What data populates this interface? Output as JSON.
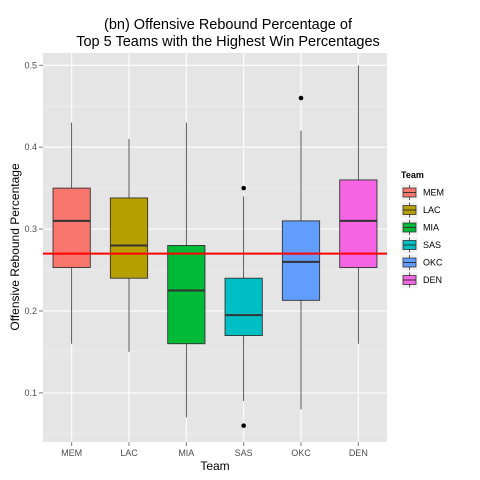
{
  "chart_data": {
    "type": "boxplot",
    "title_lines": [
      "(bn) Offensive Rebound Percentage of",
      "Top 5 Teams with the Highest Win Percentages"
    ],
    "xlabel": "Team",
    "ylabel": "Offensive Rebound Percentage",
    "ylim": [
      0.04,
      0.515
    ],
    "y_ticks": [
      0.1,
      0.2,
      0.3,
      0.4,
      0.5
    ],
    "y_tick_labels": [
      "0.1",
      "0.2",
      "0.3",
      "0.4",
      "0.5"
    ],
    "categories": [
      "MEM",
      "LAC",
      "MIA",
      "SAS",
      "OKC",
      "DEN"
    ],
    "grid": true,
    "reference_line": {
      "y": 0.27,
      "color": "#ff0000"
    },
    "legend": {
      "title": "Team",
      "position": "right",
      "entries": [
        "MEM",
        "LAC",
        "MIA",
        "SAS",
        "OKC",
        "DEN"
      ]
    },
    "series": [
      {
        "name": "MEM",
        "color": "#f8766d",
        "whisker_low": 0.16,
        "q1": 0.253,
        "median": 0.31,
        "q3": 0.35,
        "whisker_high": 0.43,
        "outliers": []
      },
      {
        "name": "LAC",
        "color": "#b79f00",
        "whisker_low": 0.15,
        "q1": 0.24,
        "median": 0.28,
        "q3": 0.338,
        "whisker_high": 0.41,
        "outliers": []
      },
      {
        "name": "MIA",
        "color": "#00ba38",
        "whisker_low": 0.07,
        "q1": 0.16,
        "median": 0.225,
        "q3": 0.28,
        "whisker_high": 0.43,
        "outliers": []
      },
      {
        "name": "SAS",
        "color": "#00bfc4",
        "whisker_low": 0.09,
        "q1": 0.17,
        "median": 0.195,
        "q3": 0.24,
        "whisker_high": 0.34,
        "outliers": [
          0.35,
          0.06
        ]
      },
      {
        "name": "OKC",
        "color": "#619cff",
        "whisker_low": 0.08,
        "q1": 0.213,
        "median": 0.26,
        "q3": 0.31,
        "whisker_high": 0.42,
        "outliers": [
          0.46
        ]
      },
      {
        "name": "DEN",
        "color": "#f564e3",
        "whisker_low": 0.16,
        "q1": 0.253,
        "median": 0.31,
        "q3": 0.36,
        "whisker_high": 0.5,
        "outliers": []
      }
    ]
  }
}
